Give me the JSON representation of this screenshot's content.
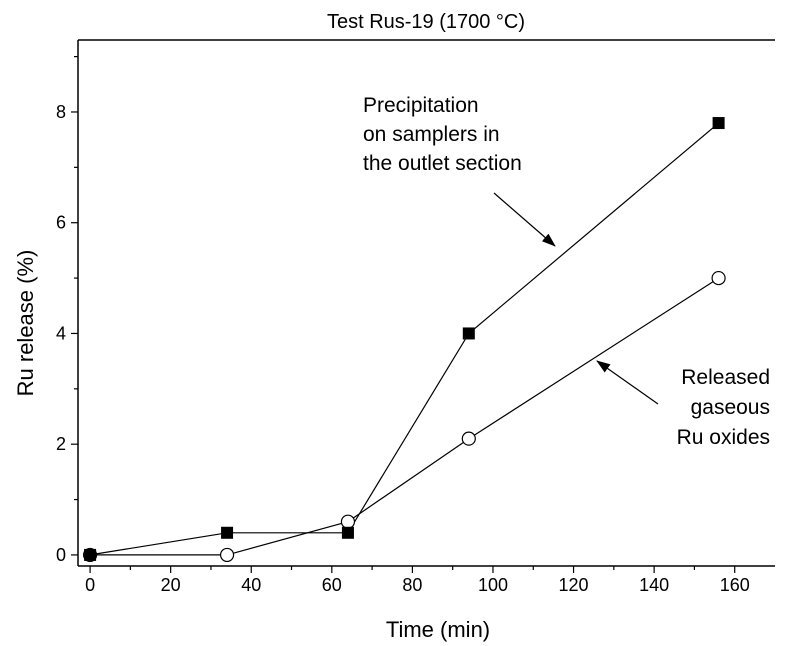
{
  "chart_data": {
    "type": "line",
    "title": "Test Rus-19 (1700 °C)",
    "xlabel": "Time (min)",
    "ylabel": "Ru release (%)",
    "xlim": [
      -3,
      170
    ],
    "ylim": [
      -0.2,
      9.3
    ],
    "xticks": [
      0,
      20,
      40,
      60,
      80,
      100,
      120,
      140,
      160
    ],
    "yticks": [
      0,
      2,
      4,
      6,
      8
    ],
    "grid": false,
    "legend": "none",
    "series": [
      {
        "marker": "filled-square",
        "x": [
          0,
          34,
          64,
          94,
          156
        ],
        "y": [
          0,
          0.4,
          0.4,
          4.0,
          7.8
        ]
      },
      {
        "marker": "open-circle",
        "x": [
          0,
          34,
          64,
          94,
          156
        ],
        "y": [
          0,
          0,
          0.6,
          2.1,
          5.0
        ]
      }
    ],
    "annotations": [
      {
        "lines": [
          "Precipitation",
          "on samplers in",
          "the outlet section"
        ],
        "points_to_series": 0
      },
      {
        "lines": [
          "Released",
          "gaseous",
          "Ru oxides"
        ],
        "points_to_series": 1
      }
    ]
  }
}
